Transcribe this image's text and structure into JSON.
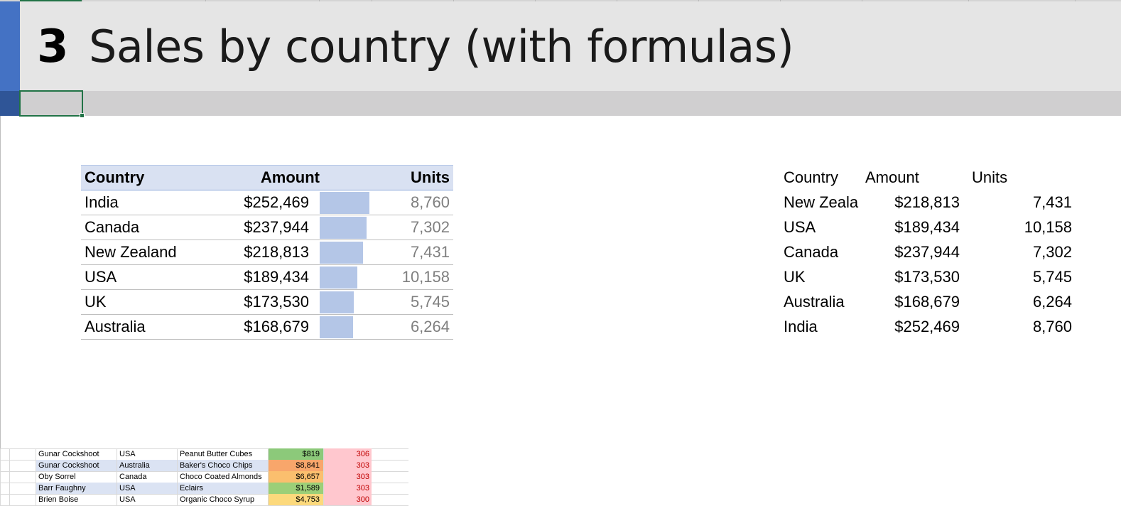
{
  "header": {
    "number": "3",
    "title": "Sales by country (with formulas)"
  },
  "colors": {
    "accent": "#4472c4",
    "header_band": "#e5e5e5",
    "databar": "#b4c6e7",
    "table_header": "#d9e1f2",
    "selection": "#217346"
  },
  "formatted_table": {
    "headers": {
      "country": "Country",
      "amount": "Amount",
      "units": "Units"
    },
    "rows": [
      {
        "country": "India",
        "amount": "$252,469",
        "units": "8,760",
        "bar_fraction": 1.0
      },
      {
        "country": "Canada",
        "amount": "$237,944",
        "units": "7,302",
        "bar_fraction": 0.942
      },
      {
        "country": "New Zealand",
        "amount": "$218,813",
        "units": "7,431",
        "bar_fraction": 0.867
      },
      {
        "country": "USA",
        "amount": "$189,434",
        "units": "10,158",
        "bar_fraction": 0.75
      },
      {
        "country": "UK",
        "amount": "$173,530",
        "units": "5,745",
        "bar_fraction": 0.687
      },
      {
        "country": "Australia",
        "amount": "$168,679",
        "units": "6,264",
        "bar_fraction": 0.668
      }
    ]
  },
  "plain_table": {
    "headers": {
      "country": "Country",
      "amount": "Amount",
      "units": "Units"
    },
    "rows": [
      {
        "country": "New Zeala",
        "amount": "$218,813",
        "units": "7,431"
      },
      {
        "country": "USA",
        "amount": "$189,434",
        "units": "10,158"
      },
      {
        "country": "Canada",
        "amount": "$237,944",
        "units": "7,302"
      },
      {
        "country": "UK",
        "amount": "$173,530",
        "units": "5,745"
      },
      {
        "country": "Australia",
        "amount": "$168,679",
        "units": "6,264"
      },
      {
        "country": "India",
        "amount": "$252,469",
        "units": "8,760"
      }
    ]
  },
  "data_strip": {
    "rows": [
      {
        "name": "Gunar Cockshoot",
        "country": "USA",
        "product": "Peanut Butter Cubes",
        "amount": "$819",
        "units": "306",
        "amount_color": "#8cc97a",
        "band": false
      },
      {
        "name": "Gunar Cockshoot",
        "country": "Australia",
        "product": "Baker's Choco Chips",
        "amount": "$8,841",
        "units": "303",
        "amount_color": "#f8a66b",
        "band": true
      },
      {
        "name": "Oby Sorrel",
        "country": "Canada",
        "product": "Choco Coated Almonds",
        "amount": "$6,657",
        "units": "303",
        "amount_color": "#fbbf6e",
        "band": false
      },
      {
        "name": "Barr Faughny",
        "country": "USA",
        "product": "Eclairs",
        "amount": "$1,589",
        "units": "303",
        "amount_color": "#9ccf78",
        "band": true
      },
      {
        "name": "Brien Boise",
        "country": "USA",
        "product": "Organic Choco Syrup",
        "amount": "$4,753",
        "units": "300",
        "amount_color": "#fcd97c",
        "band": false
      }
    ]
  }
}
